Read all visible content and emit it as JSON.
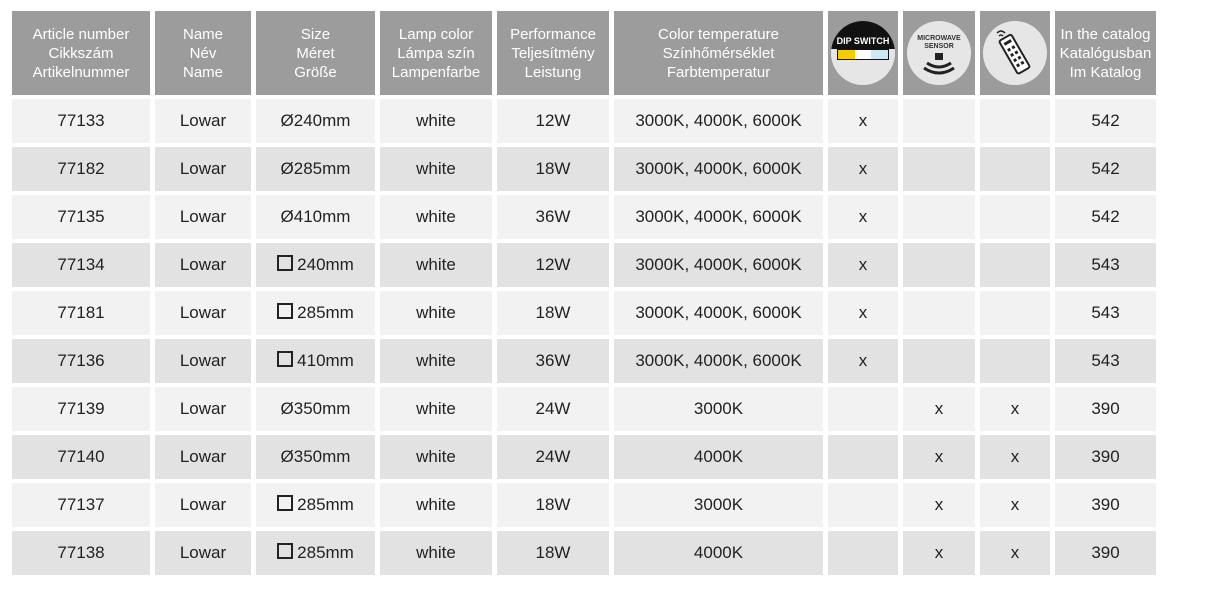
{
  "headers": [
    {
      "l1": "Article number",
      "l2": "Cikkszám",
      "l3": "Artikelnummer"
    },
    {
      "l1": "Name",
      "l2": "Név",
      "l3": "Name"
    },
    {
      "l1": "Size",
      "l2": "Méret",
      "l3": "Größe"
    },
    {
      "l1": "Lamp color",
      "l2": "Lámpa szín",
      "l3": "Lampenfarbe"
    },
    {
      "l1": "Performance",
      "l2": "Teljesítmény",
      "l3": "Leistung"
    },
    {
      "l1": "Color temperature",
      "l2": "Színhőmérséklet",
      "l3": "Farbtemperatur"
    },
    {
      "icon": "dip-switch-icon",
      "text": "DIP SWITCH",
      "colors": [
        "#f5cc00",
        "#ffffff",
        "#cfe6f3"
      ]
    },
    {
      "icon": "microwave-sensor-icon",
      "text": "MICROWAVE SENSOR"
    },
    {
      "icon": "remote-control-icon"
    },
    {
      "l1": "In the catalog",
      "l2": "Katalógusban",
      "l3": "Im Katalog"
    }
  ],
  "rows": [
    {
      "article": "77133",
      "name": "Lowar",
      "shape": "round",
      "size": "240mm",
      "color": "white",
      "power": "12W",
      "temp": "3000K, 4000K, 6000K",
      "dip": "x",
      "mw": "",
      "remote": "",
      "catalog": "542"
    },
    {
      "article": "77182",
      "name": "Lowar",
      "shape": "round",
      "size": "285mm",
      "color": "white",
      "power": "18W",
      "temp": "3000K, 4000K, 6000K",
      "dip": "x",
      "mw": "",
      "remote": "",
      "catalog": "542"
    },
    {
      "article": "77135",
      "name": "Lowar",
      "shape": "round",
      "size": "410mm",
      "color": "white",
      "power": "36W",
      "temp": "3000K, 4000K, 6000K",
      "dip": "x",
      "mw": "",
      "remote": "",
      "catalog": "542"
    },
    {
      "article": "77134",
      "name": "Lowar",
      "shape": "square",
      "size": "240mm",
      "color": "white",
      "power": "12W",
      "temp": "3000K, 4000K, 6000K",
      "dip": "x",
      "mw": "",
      "remote": "",
      "catalog": "543"
    },
    {
      "article": "77181",
      "name": "Lowar",
      "shape": "square",
      "size": "285mm",
      "color": "white",
      "power": "18W",
      "temp": "3000K, 4000K, 6000K",
      "dip": "x",
      "mw": "",
      "remote": "",
      "catalog": "543"
    },
    {
      "article": "77136",
      "name": "Lowar",
      "shape": "square",
      "size": "410mm",
      "color": "white",
      "power": "36W",
      "temp": "3000K, 4000K, 6000K",
      "dip": "x",
      "mw": "",
      "remote": "",
      "catalog": "543"
    },
    {
      "article": "77139",
      "name": "Lowar",
      "shape": "round",
      "size": "350mm",
      "color": "white",
      "power": "24W",
      "temp": "3000K",
      "dip": "",
      "mw": "x",
      "remote": "x",
      "catalog": "390"
    },
    {
      "article": "77140",
      "name": "Lowar",
      "shape": "round",
      "size": "350mm",
      "color": "white",
      "power": "24W",
      "temp": "4000K",
      "dip": "",
      "mw": "x",
      "remote": "x",
      "catalog": "390"
    },
    {
      "article": "77137",
      "name": "Lowar",
      "shape": "square",
      "size": "285mm",
      "color": "white",
      "power": "18W",
      "temp": "3000K",
      "dip": "",
      "mw": "x",
      "remote": "x",
      "catalog": "390"
    },
    {
      "article": "77138",
      "name": "Lowar",
      "shape": "square",
      "size": "285mm",
      "color": "white",
      "power": "18W",
      "temp": "4000K",
      "dip": "",
      "mw": "x",
      "remote": "x",
      "catalog": "390"
    }
  ],
  "symbols": {
    "round": "Ø"
  }
}
